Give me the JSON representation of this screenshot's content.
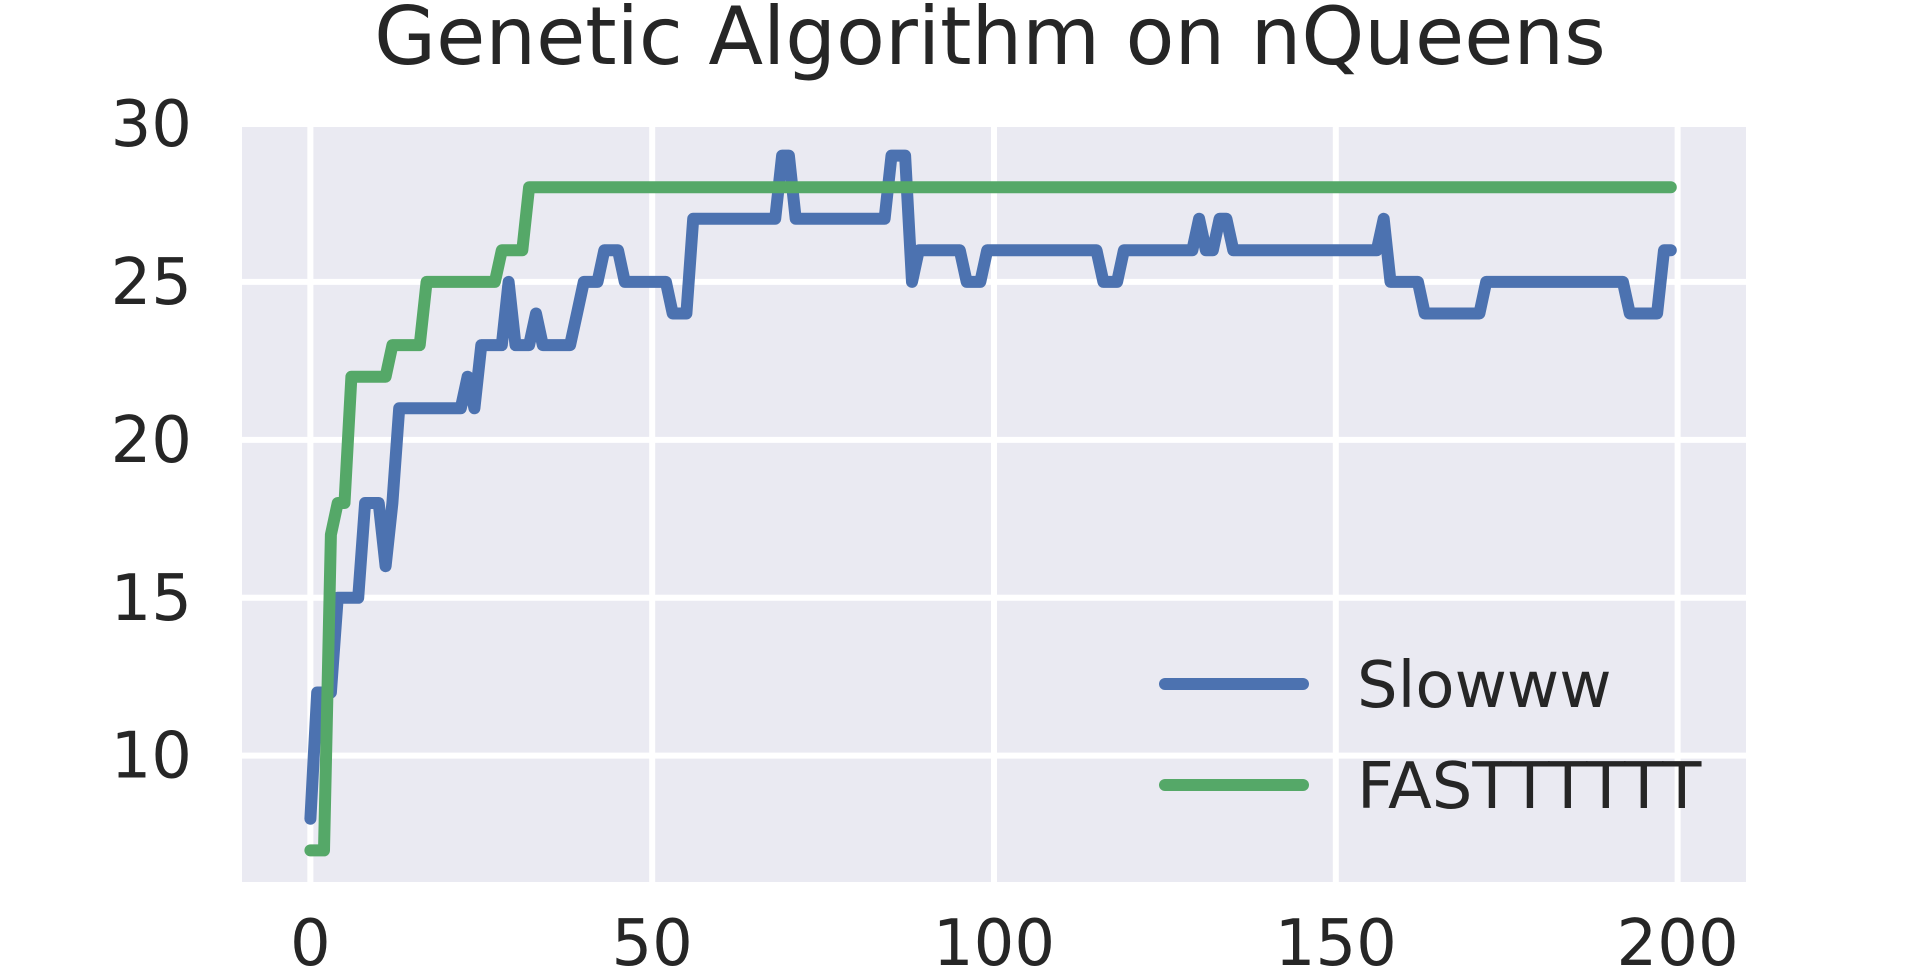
{
  "chart_data": {
    "type": "line",
    "title": "Genetic Algorithm on nQueens",
    "xlabel": "",
    "ylabel": "",
    "xlim": [
      -10,
      210
    ],
    "ylim": [
      6,
      30
    ],
    "xticks": [
      0,
      50,
      100,
      150,
      200
    ],
    "yticks": [
      10,
      15,
      20,
      25,
      30
    ],
    "grid": true,
    "legend_position": "bottom-right",
    "colors": {
      "background": "#eaeaf2",
      "grid": "#ffffff",
      "text": "#262626"
    },
    "series": [
      {
        "name": "Slowww",
        "color": "#4c72b0",
        "points": [
          [
            0,
            8
          ],
          [
            1,
            12
          ],
          [
            2,
            12
          ],
          [
            3,
            12
          ],
          [
            4,
            15
          ],
          [
            5,
            15
          ],
          [
            6,
            15
          ],
          [
            7,
            15
          ],
          [
            8,
            18
          ],
          [
            9,
            18
          ],
          [
            10,
            18
          ],
          [
            11,
            16
          ],
          [
            12,
            18
          ],
          [
            13,
            21
          ],
          [
            14,
            21
          ],
          [
            15,
            21
          ],
          [
            16,
            21
          ],
          [
            17,
            21
          ],
          [
            18,
            21
          ],
          [
            19,
            21
          ],
          [
            20,
            21
          ],
          [
            21,
            21
          ],
          [
            22,
            21
          ],
          [
            23,
            22
          ],
          [
            24,
            21
          ],
          [
            25,
            23
          ],
          [
            26,
            23
          ],
          [
            27,
            23
          ],
          [
            28,
            23
          ],
          [
            29,
            25
          ],
          [
            30,
            23
          ],
          [
            31,
            23
          ],
          [
            32,
            23
          ],
          [
            33,
            24
          ],
          [
            34,
            23
          ],
          [
            35,
            23
          ],
          [
            36,
            23
          ],
          [
            37,
            23
          ],
          [
            38,
            23
          ],
          [
            39,
            24
          ],
          [
            40,
            25
          ],
          [
            41,
            25
          ],
          [
            42,
            25
          ],
          [
            43,
            26
          ],
          [
            44,
            26
          ],
          [
            45,
            26
          ],
          [
            46,
            25
          ],
          [
            47,
            25
          ],
          [
            48,
            25
          ],
          [
            49,
            25
          ],
          [
            50,
            25
          ],
          [
            51,
            25
          ],
          [
            52,
            25
          ],
          [
            53,
            24
          ],
          [
            54,
            24
          ],
          [
            55,
            24
          ],
          [
            56,
            27
          ],
          [
            57,
            27
          ],
          [
            58,
            27
          ],
          [
            59,
            27
          ],
          [
            60,
            27
          ],
          [
            61,
            27
          ],
          [
            62,
            27
          ],
          [
            63,
            27
          ],
          [
            64,
            27
          ],
          [
            65,
            27
          ],
          [
            66,
            27
          ],
          [
            67,
            27
          ],
          [
            68,
            27
          ],
          [
            69,
            29
          ],
          [
            70,
            29
          ],
          [
            71,
            27
          ],
          [
            72,
            27
          ],
          [
            73,
            27
          ],
          [
            74,
            27
          ],
          [
            75,
            27
          ],
          [
            76,
            27
          ],
          [
            77,
            27
          ],
          [
            78,
            27
          ],
          [
            79,
            27
          ],
          [
            80,
            27
          ],
          [
            81,
            27
          ],
          [
            82,
            27
          ],
          [
            83,
            27
          ],
          [
            84,
            27
          ],
          [
            85,
            29
          ],
          [
            86,
            29
          ],
          [
            87,
            29
          ],
          [
            88,
            25
          ],
          [
            89,
            26
          ],
          [
            90,
            26
          ],
          [
            91,
            26
          ],
          [
            92,
            26
          ],
          [
            93,
            26
          ],
          [
            94,
            26
          ],
          [
            95,
            26
          ],
          [
            96,
            25
          ],
          [
            97,
            25
          ],
          [
            98,
            25
          ],
          [
            99,
            26
          ],
          [
            100,
            26
          ],
          [
            101,
            26
          ],
          [
            102,
            26
          ],
          [
            103,
            26
          ],
          [
            104,
            26
          ],
          [
            105,
            26
          ],
          [
            106,
            26
          ],
          [
            107,
            26
          ],
          [
            108,
            26
          ],
          [
            109,
            26
          ],
          [
            110,
            26
          ],
          [
            111,
            26
          ],
          [
            112,
            26
          ],
          [
            113,
            26
          ],
          [
            114,
            26
          ],
          [
            115,
            26
          ],
          [
            116,
            25
          ],
          [
            117,
            25
          ],
          [
            118,
            25
          ],
          [
            119,
            26
          ],
          [
            120,
            26
          ],
          [
            121,
            26
          ],
          [
            122,
            26
          ],
          [
            123,
            26
          ],
          [
            124,
            26
          ],
          [
            125,
            26
          ],
          [
            126,
            26
          ],
          [
            127,
            26
          ],
          [
            128,
            26
          ],
          [
            129,
            26
          ],
          [
            130,
            27
          ],
          [
            131,
            26
          ],
          [
            132,
            26
          ],
          [
            133,
            27
          ],
          [
            134,
            27
          ],
          [
            135,
            26
          ],
          [
            136,
            26
          ],
          [
            137,
            26
          ],
          [
            138,
            26
          ],
          [
            139,
            26
          ],
          [
            140,
            26
          ],
          [
            141,
            26
          ],
          [
            142,
            26
          ],
          [
            143,
            26
          ],
          [
            144,
            26
          ],
          [
            145,
            26
          ],
          [
            146,
            26
          ],
          [
            147,
            26
          ],
          [
            148,
            26
          ],
          [
            149,
            26
          ],
          [
            150,
            26
          ],
          [
            151,
            26
          ],
          [
            152,
            26
          ],
          [
            153,
            26
          ],
          [
            154,
            26
          ],
          [
            155,
            26
          ],
          [
            156,
            26
          ],
          [
            157,
            27
          ],
          [
            158,
            25
          ],
          [
            159,
            25
          ],
          [
            160,
            25
          ],
          [
            161,
            25
          ],
          [
            162,
            25
          ],
          [
            163,
            24
          ],
          [
            164,
            24
          ],
          [
            165,
            24
          ],
          [
            166,
            24
          ],
          [
            167,
            24
          ],
          [
            168,
            24
          ],
          [
            169,
            24
          ],
          [
            170,
            24
          ],
          [
            171,
            24
          ],
          [
            172,
            25
          ],
          [
            173,
            25
          ],
          [
            174,
            25
          ],
          [
            175,
            25
          ],
          [
            176,
            25
          ],
          [
            177,
            25
          ],
          [
            178,
            25
          ],
          [
            179,
            25
          ],
          [
            180,
            25
          ],
          [
            181,
            25
          ],
          [
            182,
            25
          ],
          [
            183,
            25
          ],
          [
            184,
            25
          ],
          [
            185,
            25
          ],
          [
            186,
            25
          ],
          [
            187,
            25
          ],
          [
            188,
            25
          ],
          [
            189,
            25
          ],
          [
            190,
            25
          ],
          [
            191,
            25
          ],
          [
            192,
            25
          ],
          [
            193,
            24
          ],
          [
            194,
            24
          ],
          [
            195,
            24
          ],
          [
            196,
            24
          ],
          [
            197,
            24
          ],
          [
            198,
            26
          ],
          [
            199,
            26
          ]
        ]
      },
      {
        "name": "FASTTTTTT",
        "color": "#55a868",
        "points": [
          [
            0,
            7
          ],
          [
            1,
            7
          ],
          [
            2,
            7
          ],
          [
            3,
            17
          ],
          [
            4,
            18
          ],
          [
            5,
            18
          ],
          [
            6,
            22
          ],
          [
            7,
            22
          ],
          [
            8,
            22
          ],
          [
            9,
            22
          ],
          [
            10,
            22
          ],
          [
            11,
            22
          ],
          [
            12,
            23
          ],
          [
            13,
            23
          ],
          [
            14,
            23
          ],
          [
            15,
            23
          ],
          [
            16,
            23
          ],
          [
            17,
            25
          ],
          [
            18,
            25
          ],
          [
            19,
            25
          ],
          [
            20,
            25
          ],
          [
            21,
            25
          ],
          [
            22,
            25
          ],
          [
            23,
            25
          ],
          [
            24,
            25
          ],
          [
            25,
            25
          ],
          [
            26,
            25
          ],
          [
            27,
            25
          ],
          [
            28,
            26
          ],
          [
            29,
            26
          ],
          [
            30,
            26
          ],
          [
            31,
            26
          ],
          [
            32,
            28
          ],
          [
            199,
            28
          ]
        ]
      }
    ]
  }
}
